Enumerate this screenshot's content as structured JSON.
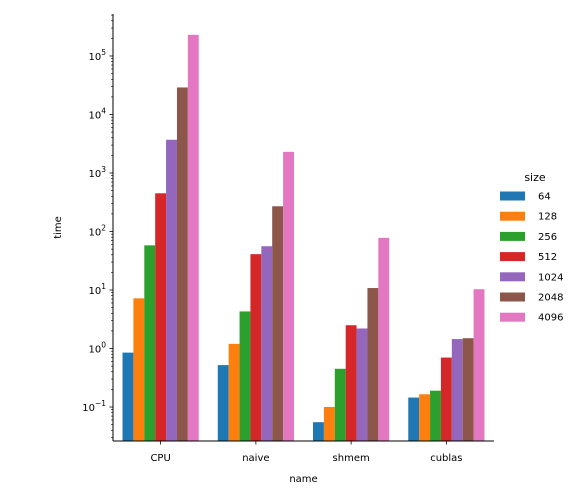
{
  "chart_data": {
    "type": "bar",
    "log_y": true,
    "xlabel": "name",
    "ylabel": "time",
    "categories": [
      "CPU",
      "naive",
      "shmem",
      "cublas"
    ],
    "y_ticks": [
      {
        "value": 0.1,
        "base": "10",
        "exp": "−1"
      },
      {
        "value": 1,
        "base": "10",
        "exp": "0"
      },
      {
        "value": 10,
        "base": "10",
        "exp": "1"
      },
      {
        "value": 100,
        "base": "10",
        "exp": "2"
      },
      {
        "value": 1000,
        "base": "10",
        "exp": "3"
      },
      {
        "value": 10000,
        "base": "10",
        "exp": "4"
      },
      {
        "value": 100000,
        "base": "10",
        "exp": "5"
      }
    ],
    "ylim": [
      0.025,
      500000
    ],
    "legend": {
      "title": "size",
      "placement": "right"
    },
    "series": [
      {
        "name": "64",
        "color": "#1f77b4",
        "values": [
          0.85,
          0.52,
          0.055,
          0.145
        ]
      },
      {
        "name": "128",
        "color": "#ff7f0e",
        "values": [
          7.2,
          1.2,
          0.1,
          0.165
        ]
      },
      {
        "name": "256",
        "color": "#2ca02c",
        "values": [
          58,
          4.3,
          0.45,
          0.19
        ]
      },
      {
        "name": "512",
        "color": "#d62728",
        "values": [
          450,
          41,
          2.5,
          0.7
        ]
      },
      {
        "name": "1024",
        "color": "#9467bd",
        "values": [
          3700,
          56,
          2.2,
          1.45
        ]
      },
      {
        "name": "2048",
        "color": "#8c564b",
        "values": [
          29000,
          270,
          10.8,
          1.5
        ]
      },
      {
        "name": "4096",
        "color": "#e377c2",
        "values": [
          230000,
          2300,
          78,
          10.3
        ]
      }
    ]
  }
}
